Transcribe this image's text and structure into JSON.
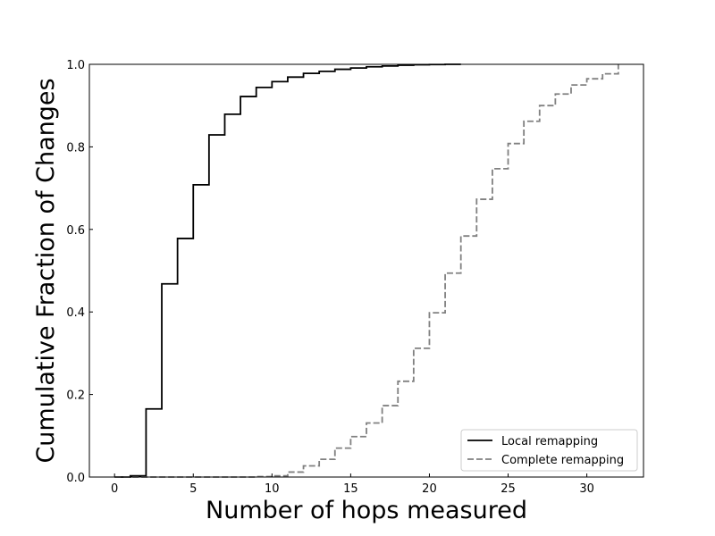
{
  "chart_data": {
    "type": "line",
    "step": "post",
    "xlabel": "Number of hops measured",
    "ylabel": "Cumulative Fraction of Changes",
    "xlim": [
      -1.6,
      33.6
    ],
    "ylim": [
      0,
      1
    ],
    "xticks": [
      0,
      5,
      10,
      15,
      20,
      25,
      30
    ],
    "yticks": [
      0.0,
      0.2,
      0.4,
      0.6,
      0.8,
      1.0
    ],
    "xtick_labels": [
      "0",
      "5",
      "10",
      "15",
      "20",
      "25",
      "30"
    ],
    "ytick_labels": [
      "0.0",
      "0.2",
      "0.4",
      "0.6",
      "0.8",
      "1.0"
    ],
    "grid": false,
    "legend_position": "lower-right",
    "series": [
      {
        "name": "Local remapping",
        "color": "#000000",
        "dash": "solid",
        "x": [
          0,
          1,
          2,
          3,
          4,
          5,
          6,
          7,
          8,
          9,
          10,
          11,
          12,
          13,
          14,
          15,
          16,
          17,
          18,
          19,
          20,
          21,
          22
        ],
        "y": [
          0.0,
          0.003,
          0.165,
          0.468,
          0.578,
          0.708,
          0.829,
          0.879,
          0.922,
          0.944,
          0.958,
          0.969,
          0.978,
          0.983,
          0.988,
          0.991,
          0.994,
          0.996,
          0.998,
          0.999,
          0.9995,
          1.0,
          1.0
        ]
      },
      {
        "name": "Complete remapping",
        "color": "#808080",
        "dash": "dashed",
        "x": [
          0,
          1,
          2,
          3,
          4,
          5,
          6,
          7,
          8,
          9,
          10,
          11,
          12,
          13,
          14,
          15,
          16,
          17,
          18,
          19,
          20,
          21,
          22,
          23,
          24,
          25,
          26,
          27,
          28,
          29,
          30,
          31,
          32
        ],
        "y": [
          0.0,
          0.0,
          0.0,
          0.0,
          0.0,
          0.0,
          0.0,
          0.0,
          0.0,
          0.001,
          0.003,
          0.012,
          0.027,
          0.043,
          0.07,
          0.098,
          0.131,
          0.173,
          0.232,
          0.312,
          0.398,
          0.494,
          0.584,
          0.673,
          0.747,
          0.808,
          0.862,
          0.9,
          0.928,
          0.95,
          0.965,
          0.977,
          1.0
        ]
      }
    ]
  }
}
